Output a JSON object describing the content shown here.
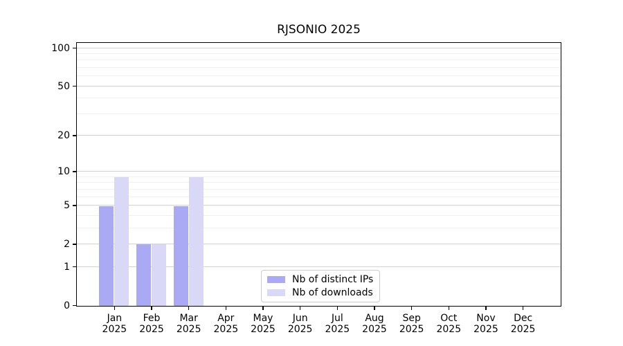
{
  "chart_data": {
    "type": "bar",
    "title": "RJSONIO 2025",
    "categories": [
      "Jan 2025",
      "Feb 2025",
      "Mar 2025",
      "Apr 2025",
      "May 2025",
      "Jun 2025",
      "Jul 2025",
      "Aug 2025",
      "Sep 2025",
      "Oct 2025",
      "Nov 2025",
      "Dec 2025"
    ],
    "months": [
      "Jan",
      "Feb",
      "Mar",
      "Apr",
      "May",
      "Jun",
      "Jul",
      "Aug",
      "Sep",
      "Oct",
      "Nov",
      "Dec"
    ],
    "x_tick_year": "2025",
    "series": [
      {
        "name": "Nb of distinct IPs",
        "color": "#aaaaf4",
        "values": [
          5,
          2,
          5,
          0,
          0,
          0,
          0,
          0,
          0,
          0,
          0,
          0
        ]
      },
      {
        "name": "Nb of downloads",
        "color": "#d9d9f7",
        "values": [
          9,
          2,
          9,
          0,
          0,
          0,
          0,
          0,
          0,
          0,
          0,
          0
        ]
      }
    ],
    "xlabel": "",
    "ylabel": "",
    "yscale": "log1p",
    "ylim": [
      0,
      110
    ],
    "yticks": [
      0,
      1,
      2,
      5,
      10,
      20,
      50,
      100
    ],
    "y_minor_gridlines": [
      3,
      4,
      6,
      7,
      8,
      9,
      30,
      40,
      60,
      70,
      80,
      90
    ],
    "grid": true,
    "legend_position": "lower center",
    "colors": {
      "major_grid": "#d2d2d2",
      "minor_grid": "#f0f0f0",
      "axis": "#000000",
      "text": "#000000",
      "background": "#ffffff"
    }
  }
}
